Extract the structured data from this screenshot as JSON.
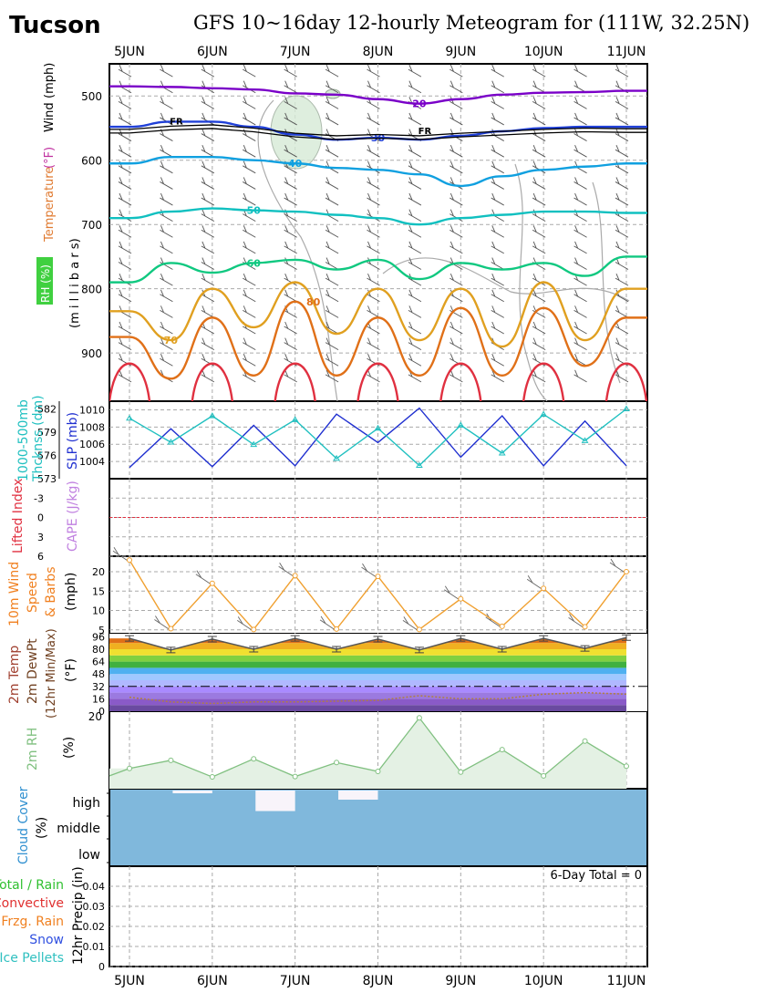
{
  "header": {
    "location": "Tucson",
    "title": "GFS 10~16day 12-hourly Meteogram for (111W, 32.25N)"
  },
  "time_axis": {
    "labels": [
      "5JUN",
      "6JUN",
      "7JUN",
      "8JUN",
      "9JUN",
      "10JUN",
      "11JUN"
    ]
  },
  "colors": {
    "temp_cold": "#7a00c8",
    "temp_30": "#2040d8",
    "temp_40": "#10a0e0",
    "temp_50": "#10c0c0",
    "temp_60": "#10c880",
    "temp_70": "#e0a020",
    "temp_80": "#e07018",
    "temp_90": "#e03040",
    "freezing": "#000000",
    "slp": "#2030d0",
    "thickness": "#20c0c0",
    "wind": "#f0a030",
    "rh2m": "#80c080",
    "cloud": "#80b8dc",
    "dew": "#b08040"
  },
  "panels": {
    "upper": {
      "ylabels": [
        "Temperature",
        "(°F)",
        "Wind",
        "(mph)",
        "(m i l l i b a r s)",
        "RH (%)"
      ],
      "contour_labels": {
        "fr": "FR",
        "t20": "20",
        "t30": "30",
        "t40": "40",
        "t50": "50",
        "t60": "60",
        "t70": "70",
        "t80": "80"
      }
    },
    "slp": {
      "left_label_1": "1000-500mb",
      "left_label_2": "Thcknss (dm)",
      "right_label": "SLP (mb)"
    },
    "li": {
      "left_label": "Lifted Index",
      "right_label": "CAPE (J/kg)"
    },
    "wind": {
      "label_1": "10m Wind",
      "label_2": "Speed",
      "label_3": "& Barbs",
      "unit": "(mph)"
    },
    "temp2m": {
      "label_1": "2m Temp",
      "label_2": "2m DewPt",
      "label_3": "(12hr Min/Max)",
      "unit": "(°F)"
    },
    "rh": {
      "label": "2m RH",
      "unit": "(%)"
    },
    "cloud": {
      "label": "Cloud Cover",
      "unit": "(%)",
      "levels": [
        "high",
        "middle",
        "low"
      ]
    },
    "precip": {
      "label": "12hr Precip (in)",
      "total": "6-Day Total = 0",
      "legend": [
        "Total / Rain",
        "Convective",
        "Frzg. Rain",
        "Snow",
        "Ice Pellets"
      ],
      "legend_colors": [
        "#30c030",
        "#e03030",
        "#f08020",
        "#3050e0",
        "#30c0c0"
      ]
    }
  },
  "chart_data": [
    {
      "type": "line",
      "title": "Upper-air temperature / wind / RH",
      "ylabel": "millibars",
      "yticks": [
        500,
        600,
        700,
        800,
        900
      ],
      "ylim": [
        450,
        975
      ],
      "y_reversed": true,
      "x": [
        "5JUN 00Z",
        "5JUN 12Z",
        "6JUN 00Z",
        "6JUN 12Z",
        "7JUN 00Z",
        "7JUN 12Z",
        "8JUN 00Z",
        "8JUN 12Z",
        "9JUN 00Z",
        "9JUN 12Z",
        "10JUN 00Z",
        "10JUN 12Z",
        "11JUN 00Z"
      ],
      "series": [
        {
          "name": "20",
          "values": [
            485,
            486,
            488,
            490,
            496,
            498,
            505,
            512,
            505,
            498,
            495,
            494,
            492
          ]
        },
        {
          "name": "30",
          "values": [
            548,
            540,
            540,
            548,
            560,
            568,
            565,
            568,
            562,
            555,
            550,
            548,
            548
          ]
        },
        {
          "name": "40",
          "values": [
            605,
            595,
            595,
            600,
            605,
            612,
            615,
            622,
            640,
            625,
            615,
            610,
            605
          ]
        },
        {
          "name": "50",
          "values": [
            690,
            680,
            675,
            678,
            680,
            685,
            690,
            700,
            690,
            685,
            680,
            680,
            682
          ]
        },
        {
          "name": "60",
          "values": [
            790,
            760,
            775,
            760,
            755,
            770,
            755,
            785,
            760,
            770,
            760,
            780,
            750
          ]
        },
        {
          "name": "70",
          "values": [
            835,
            880,
            800,
            860,
            790,
            870,
            800,
            880,
            800,
            890,
            790,
            880,
            800
          ]
        },
        {
          "name": "80",
          "values": [
            875,
            940,
            845,
            935,
            820,
            935,
            845,
            935,
            830,
            935,
            830,
            920,
            845
          ]
        }
      ]
    },
    {
      "type": "line",
      "title": "SLP and 1000-500mb thickness",
      "x": [
        "5JUN 00Z",
        "5JUN 12Z",
        "6JUN 00Z",
        "6JUN 12Z",
        "7JUN 00Z",
        "7JUN 12Z",
        "8JUN 00Z",
        "8JUN 12Z",
        "9JUN 00Z",
        "9JUN 12Z",
        "10JUN 00Z",
        "10JUN 12Z",
        "11JUN 00Z"
      ],
      "series": [
        {
          "name": "SLP (mb)",
          "values": [
            1003.3,
            1007.8,
            1003.4,
            1008.2,
            1003.5,
            1009.5,
            1006.2,
            1010.2,
            1004.5,
            1009.3,
            1003.5,
            1008.7,
            1003.5
          ]
        },
        {
          "name": "Thickness (dm)",
          "values": [
            580.8,
            577.7,
            581.1,
            577.4,
            580.6,
            575.6,
            579.5,
            574.7,
            579.9,
            576.3,
            581.3,
            577.9,
            582.0
          ]
        }
      ],
      "ylim_slp": [
        1002,
        1011
      ],
      "ylim_thickness": [
        573,
        583
      ]
    },
    {
      "type": "line",
      "title": "Lifted Index / CAPE",
      "yticks": [
        -3,
        0,
        3,
        6
      ],
      "ylim": [
        -6,
        6
      ],
      "series": [
        {
          "name": "Lifted Index",
          "values": [
            0,
            0,
            0,
            0,
            0,
            0,
            0,
            0,
            0,
            0,
            0,
            0,
            0
          ]
        }
      ]
    },
    {
      "type": "line",
      "title": "10m Wind Speed",
      "ylabel": "mph",
      "yticks": [
        5,
        10,
        15,
        20
      ],
      "ylim": [
        4,
        24
      ],
      "x": [
        "5JUN 00Z",
        "5JUN 12Z",
        "6JUN 00Z",
        "6JUN 12Z",
        "7JUN 00Z",
        "7JUN 12Z",
        "8JUN 00Z",
        "8JUN 12Z",
        "9JUN 00Z",
        "9JUN 12Z",
        "10JUN 00Z",
        "10JUN 12Z",
        "11JUN 00Z"
      ],
      "series": [
        {
          "name": "Wind Speed",
          "values": [
            23,
            5.3,
            17,
            5.1,
            19,
            5.2,
            18.8,
            5.1,
            13,
            5.9,
            15.7,
            5.8,
            20
          ]
        }
      ]
    },
    {
      "type": "area",
      "title": "2m Temperature / Dewpoint",
      "ylabel": "°F",
      "yticks": [
        0,
        8,
        16,
        24,
        32,
        40,
        48,
        56,
        64,
        72,
        80,
        88,
        96
      ],
      "tick_labels": [
        "0",
        "16",
        "32",
        "48",
        "64",
        "80",
        "96"
      ],
      "ylim": [
        0,
        100
      ],
      "x": [
        "5JUN 00Z",
        "5JUN 12Z",
        "6JUN 00Z",
        "6JUN 12Z",
        "7JUN 00Z",
        "7JUN 12Z",
        "8JUN 00Z",
        "8JUN 12Z",
        "9JUN 00Z",
        "9JUN 12Z",
        "10JUN 00Z",
        "10JUN 12Z",
        "11JUN 00Z"
      ],
      "series": [
        {
          "name": "Max/Min Temp",
          "values": [
            94,
            79,
            93,
            80,
            94,
            80,
            93,
            79,
            94,
            80,
            94,
            81,
            95
          ]
        },
        {
          "name": "Dew Point",
          "values": [
            18,
            12,
            10,
            12,
            12,
            13,
            14,
            20,
            16,
            16,
            22,
            24,
            22
          ]
        }
      ],
      "freezing_line": 32
    },
    {
      "type": "area",
      "title": "2m RH",
      "ylabel": "%",
      "yticks": [
        20
      ],
      "ylim": [
        0,
        21
      ],
      "x": [
        "5JUN 00Z",
        "5JUN 12Z",
        "6JUN 00Z",
        "6JUN 12Z",
        "7JUN 00Z",
        "7JUN 12Z",
        "8JUN 00Z",
        "8JUN 12Z",
        "9JUN 00Z",
        "9JUN 12Z",
        "10JUN 00Z",
        "10JUN 12Z",
        "11JUN 00Z"
      ],
      "series": [
        {
          "name": "2m RH",
          "values": [
            5.5,
            7.7,
            3.2,
            8.1,
            3.3,
            7.1,
            4.7,
            19.2,
            4.5,
            10.6,
            3.5,
            12.9,
            6.1
          ]
        }
      ]
    },
    {
      "type": "heatmap",
      "title": "Cloud Cover",
      "rows": [
        "high",
        "middle",
        "low"
      ],
      "clear_gaps": [
        {
          "row": "high",
          "start": "5JUN 12Z",
          "end": "6JUN 00Z",
          "fraction": 0.1
        },
        {
          "row": "high",
          "start": "6JUN 12Z",
          "end": "7JUN 00Z",
          "fraction": 0.9
        },
        {
          "row": "high",
          "start": "7JUN 12Z",
          "end": "8JUN 00Z",
          "fraction": 0.4
        }
      ]
    },
    {
      "type": "bar",
      "title": "12hr Precip",
      "ylabel": "in",
      "yticks": [
        0,
        0.01,
        0.02,
        0.03,
        0.04
      ],
      "ylim": [
        0,
        0.05
      ],
      "values": [
        0,
        0,
        0,
        0,
        0,
        0,
        0,
        0,
        0,
        0,
        0,
        0,
        0
      ]
    }
  ]
}
